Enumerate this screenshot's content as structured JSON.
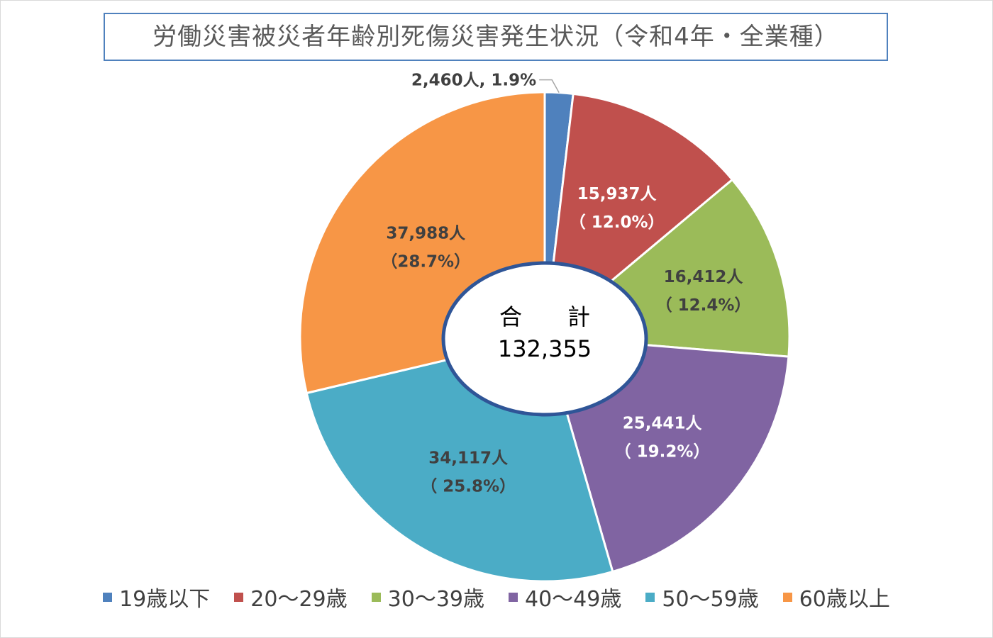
{
  "chart_data": {
    "type": "pie",
    "title": "労働災害被災者年齢別死傷災害発生状況（令和4年・全業種）",
    "center": {
      "line1": "合　　計",
      "line2": "132,355"
    },
    "slices": [
      {
        "category": "19歳以下",
        "value": 2460,
        "value_label": "2,460人",
        "percent": 1.9,
        "label": "2,460人, 1.9%",
        "percent_label": "",
        "color": "#4f81bd",
        "label_color": "#404040"
      },
      {
        "category": "20～29歳",
        "value": 15937,
        "value_label": "15,937人",
        "percent": 12.0,
        "label": "15,937人",
        "percent_label": "（ 12.0%）",
        "color": "#c0504d",
        "label_color": "#ffffff"
      },
      {
        "category": "30～39歳",
        "value": 16412,
        "value_label": "16,412人",
        "percent": 12.4,
        "label": "16,412人",
        "percent_label": "（ 12.4%）",
        "color": "#9bbb59",
        "label_color": "#404040"
      },
      {
        "category": "40～49歳",
        "value": 25441,
        "value_label": "25,441人",
        "percent": 19.2,
        "label": "25,441人",
        "percent_label": "（ 19.2%）",
        "color": "#8064a2",
        "label_color": "#ffffff"
      },
      {
        "category": "50～59歳",
        "value": 34117,
        "value_label": "34,117人",
        "percent": 25.8,
        "label": "34,117人",
        "percent_label": "（ 25.8%）",
        "color": "#4bacc6",
        "label_color": "#404040"
      },
      {
        "category": "60歳以上",
        "value": 37988,
        "value_label": "37,988人",
        "percent": 28.7,
        "label": "37,988人",
        "percent_label": "（28.7%）",
        "color": "#f79646",
        "label_color": "#404040"
      }
    ],
    "legend_position": "bottom"
  }
}
